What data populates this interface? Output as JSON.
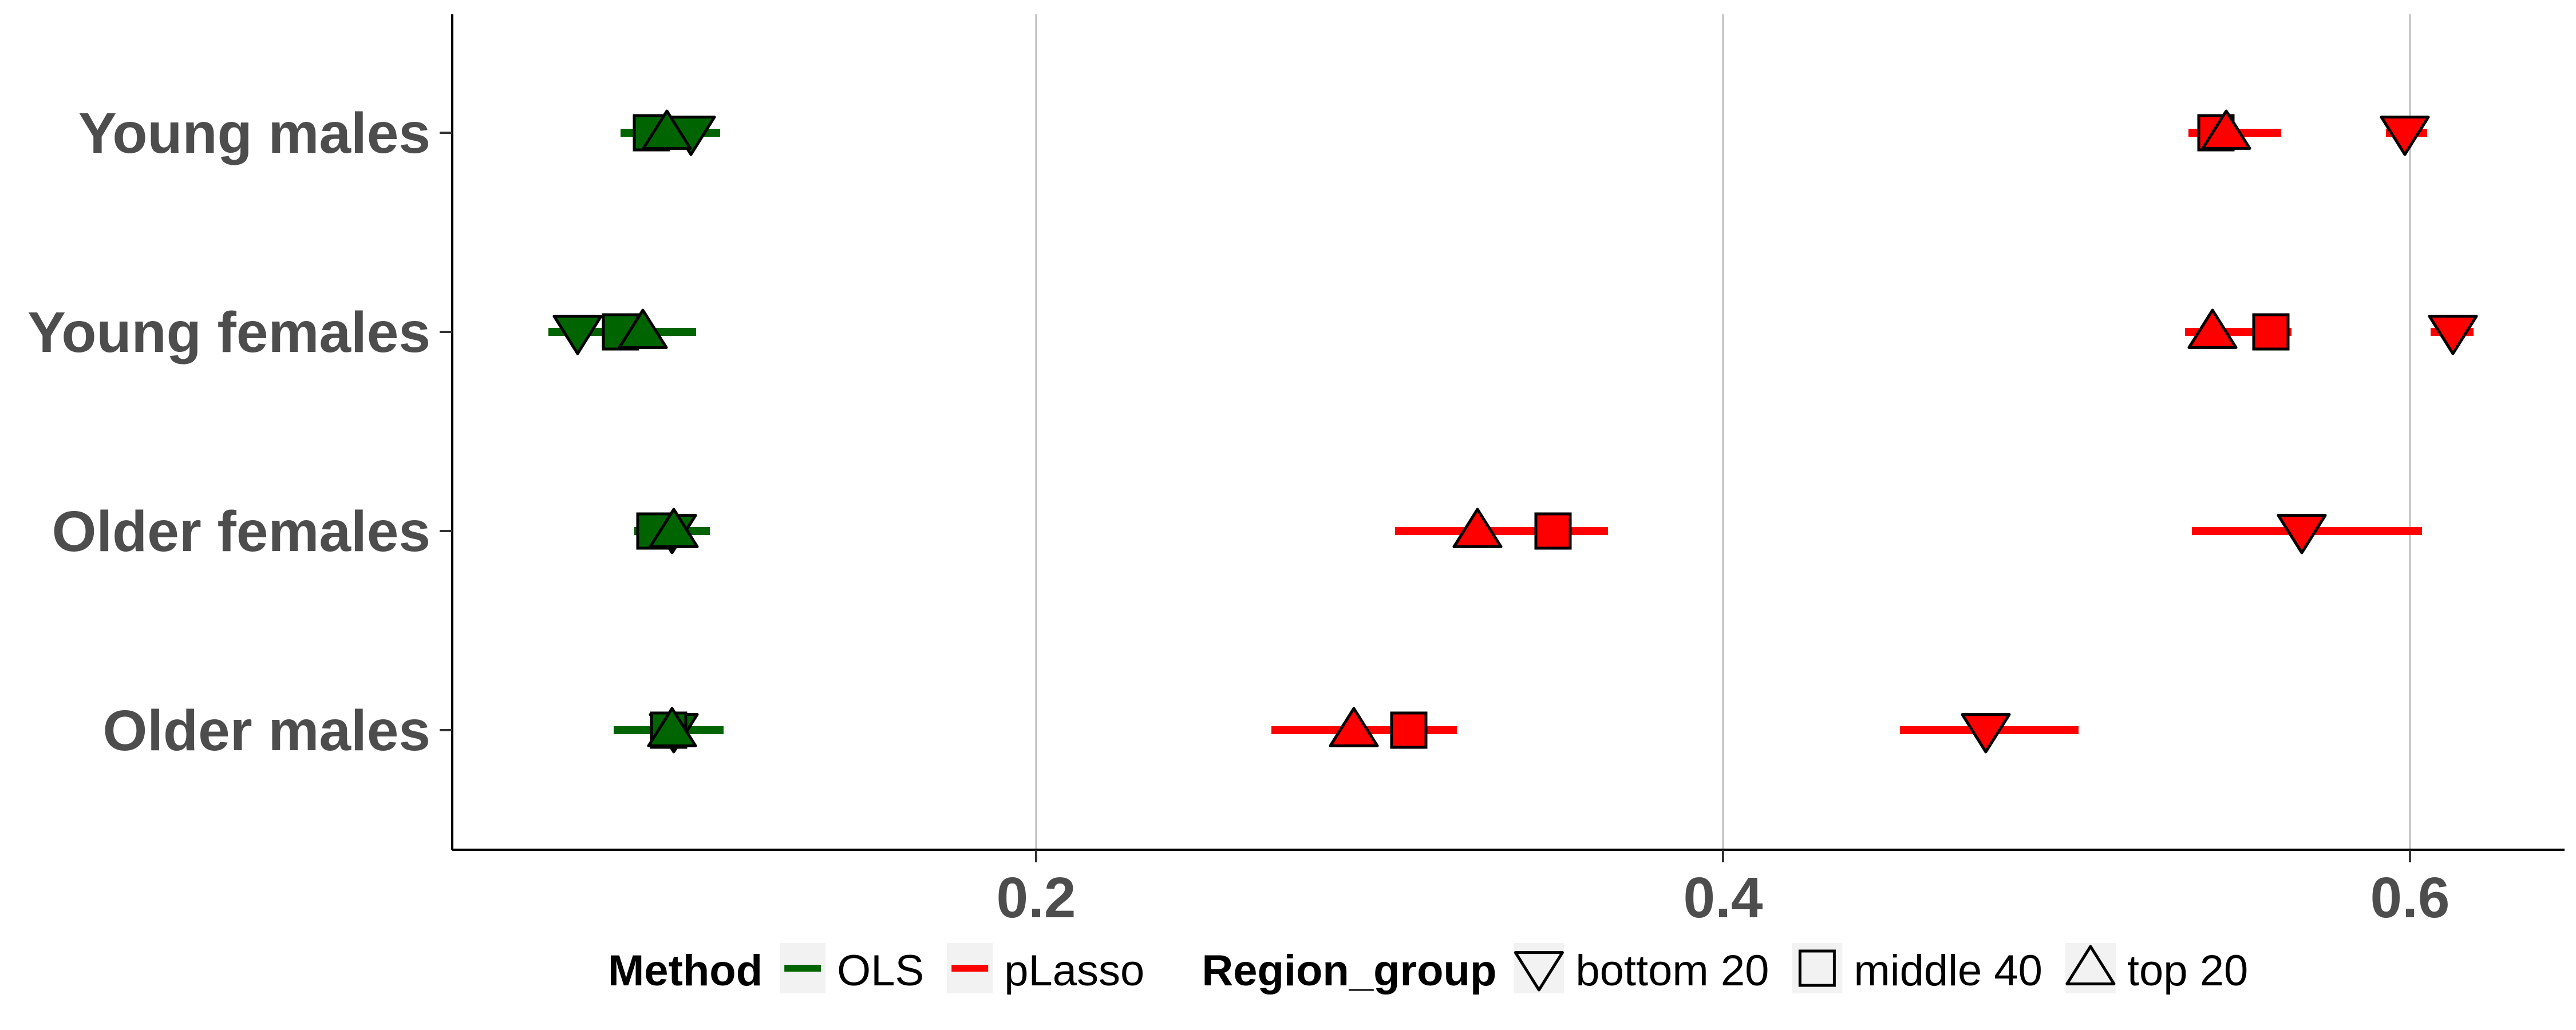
{
  "chart_data": {
    "type": "scatter",
    "title": "",
    "xlabel": "",
    "ylabel": "",
    "xlim": [
      0.03,
      0.645
    ],
    "xticks": [
      0.2,
      0.4,
      0.6
    ],
    "xtick_labels": [
      "0.2",
      "0.4",
      "0.6"
    ],
    "categories": [
      "Young males",
      "Young females",
      "Older females",
      "Older males"
    ],
    "grid": "vertical major gridlines",
    "legend_position": "bottom",
    "legend": {
      "method_title": "Method",
      "methods": [
        {
          "label": "OLS",
          "color": "#006400"
        },
        {
          "label": "pLasso",
          "color": "#ff0000"
        }
      ],
      "region_title": "Region_group",
      "regions": [
        {
          "label": "bottom 20",
          "shape": "triangle-down"
        },
        {
          "label": "middle 40",
          "shape": "square"
        },
        {
          "label": "top 20",
          "shape": "triangle-up"
        }
      ]
    },
    "series": [
      {
        "method": "OLS",
        "ranges": [
          {
            "category": "Young males",
            "low": 0.079,
            "high": 0.108
          },
          {
            "category": "Young females",
            "low": 0.058,
            "high": 0.101
          },
          {
            "category": "Older females",
            "low": 0.083,
            "high": 0.105
          },
          {
            "category": "Older males",
            "low": 0.077,
            "high": 0.109
          }
        ],
        "points": [
          {
            "category": "Young males",
            "region": "bottom 20",
            "x": 0.0995
          },
          {
            "category": "Young males",
            "region": "middle 40",
            "x": 0.088
          },
          {
            "category": "Young males",
            "region": "top 20",
            "x": 0.0925
          },
          {
            "category": "Young females",
            "region": "bottom 20",
            "x": 0.0665
          },
          {
            "category": "Young females",
            "region": "middle 40",
            "x": 0.079
          },
          {
            "category": "Young females",
            "region": "top 20",
            "x": 0.0855
          },
          {
            "category": "Older females",
            "region": "bottom 20",
            "x": 0.094
          },
          {
            "category": "Older females",
            "region": "middle 40",
            "x": 0.089
          },
          {
            "category": "Older females",
            "region": "top 20",
            "x": 0.0945
          },
          {
            "category": "Older males",
            "region": "bottom 20",
            "x": 0.0945
          },
          {
            "category": "Older males",
            "region": "middle 40",
            "x": 0.093
          },
          {
            "category": "Older males",
            "region": "top 20",
            "x": 0.094
          }
        ]
      },
      {
        "method": "pLasso",
        "ranges": [
          {
            "category": "Young males",
            "low": 0.5355,
            "high": 0.5625
          },
          {
            "category": "Young males",
            "low": 0.593,
            "high": 0.605
          },
          {
            "category": "Young females",
            "low": 0.5345,
            "high": 0.5655
          },
          {
            "category": "Young females",
            "low": 0.606,
            "high": 0.6185
          },
          {
            "category": "Older females",
            "low": 0.3045,
            "high": 0.3665
          },
          {
            "category": "Older females",
            "low": 0.5365,
            "high": 0.6035
          },
          {
            "category": "Older males",
            "low": 0.2685,
            "high": 0.3225
          },
          {
            "category": "Older males",
            "low": 0.4515,
            "high": 0.5035
          }
        ],
        "points": [
          {
            "category": "Young males",
            "region": "bottom 20",
            "x": 0.5985
          },
          {
            "category": "Young males",
            "region": "middle 40",
            "x": 0.5435
          },
          {
            "category": "Young males",
            "region": "top 20",
            "x": 0.5465
          },
          {
            "category": "Young females",
            "region": "bottom 20",
            "x": 0.6125
          },
          {
            "category": "Young females",
            "region": "middle 40",
            "x": 0.5595
          },
          {
            "category": "Young females",
            "region": "top 20",
            "x": 0.5425
          },
          {
            "category": "Older females",
            "region": "bottom 20",
            "x": 0.5685
          },
          {
            "category": "Older females",
            "region": "middle 40",
            "x": 0.3505
          },
          {
            "category": "Older females",
            "region": "top 20",
            "x": 0.3285
          },
          {
            "category": "Older males",
            "region": "bottom 20",
            "x": 0.4765
          },
          {
            "category": "Older males",
            "region": "middle 40",
            "x": 0.3085
          },
          {
            "category": "Older males",
            "region": "top 20",
            "x": 0.2925
          }
        ]
      }
    ]
  }
}
